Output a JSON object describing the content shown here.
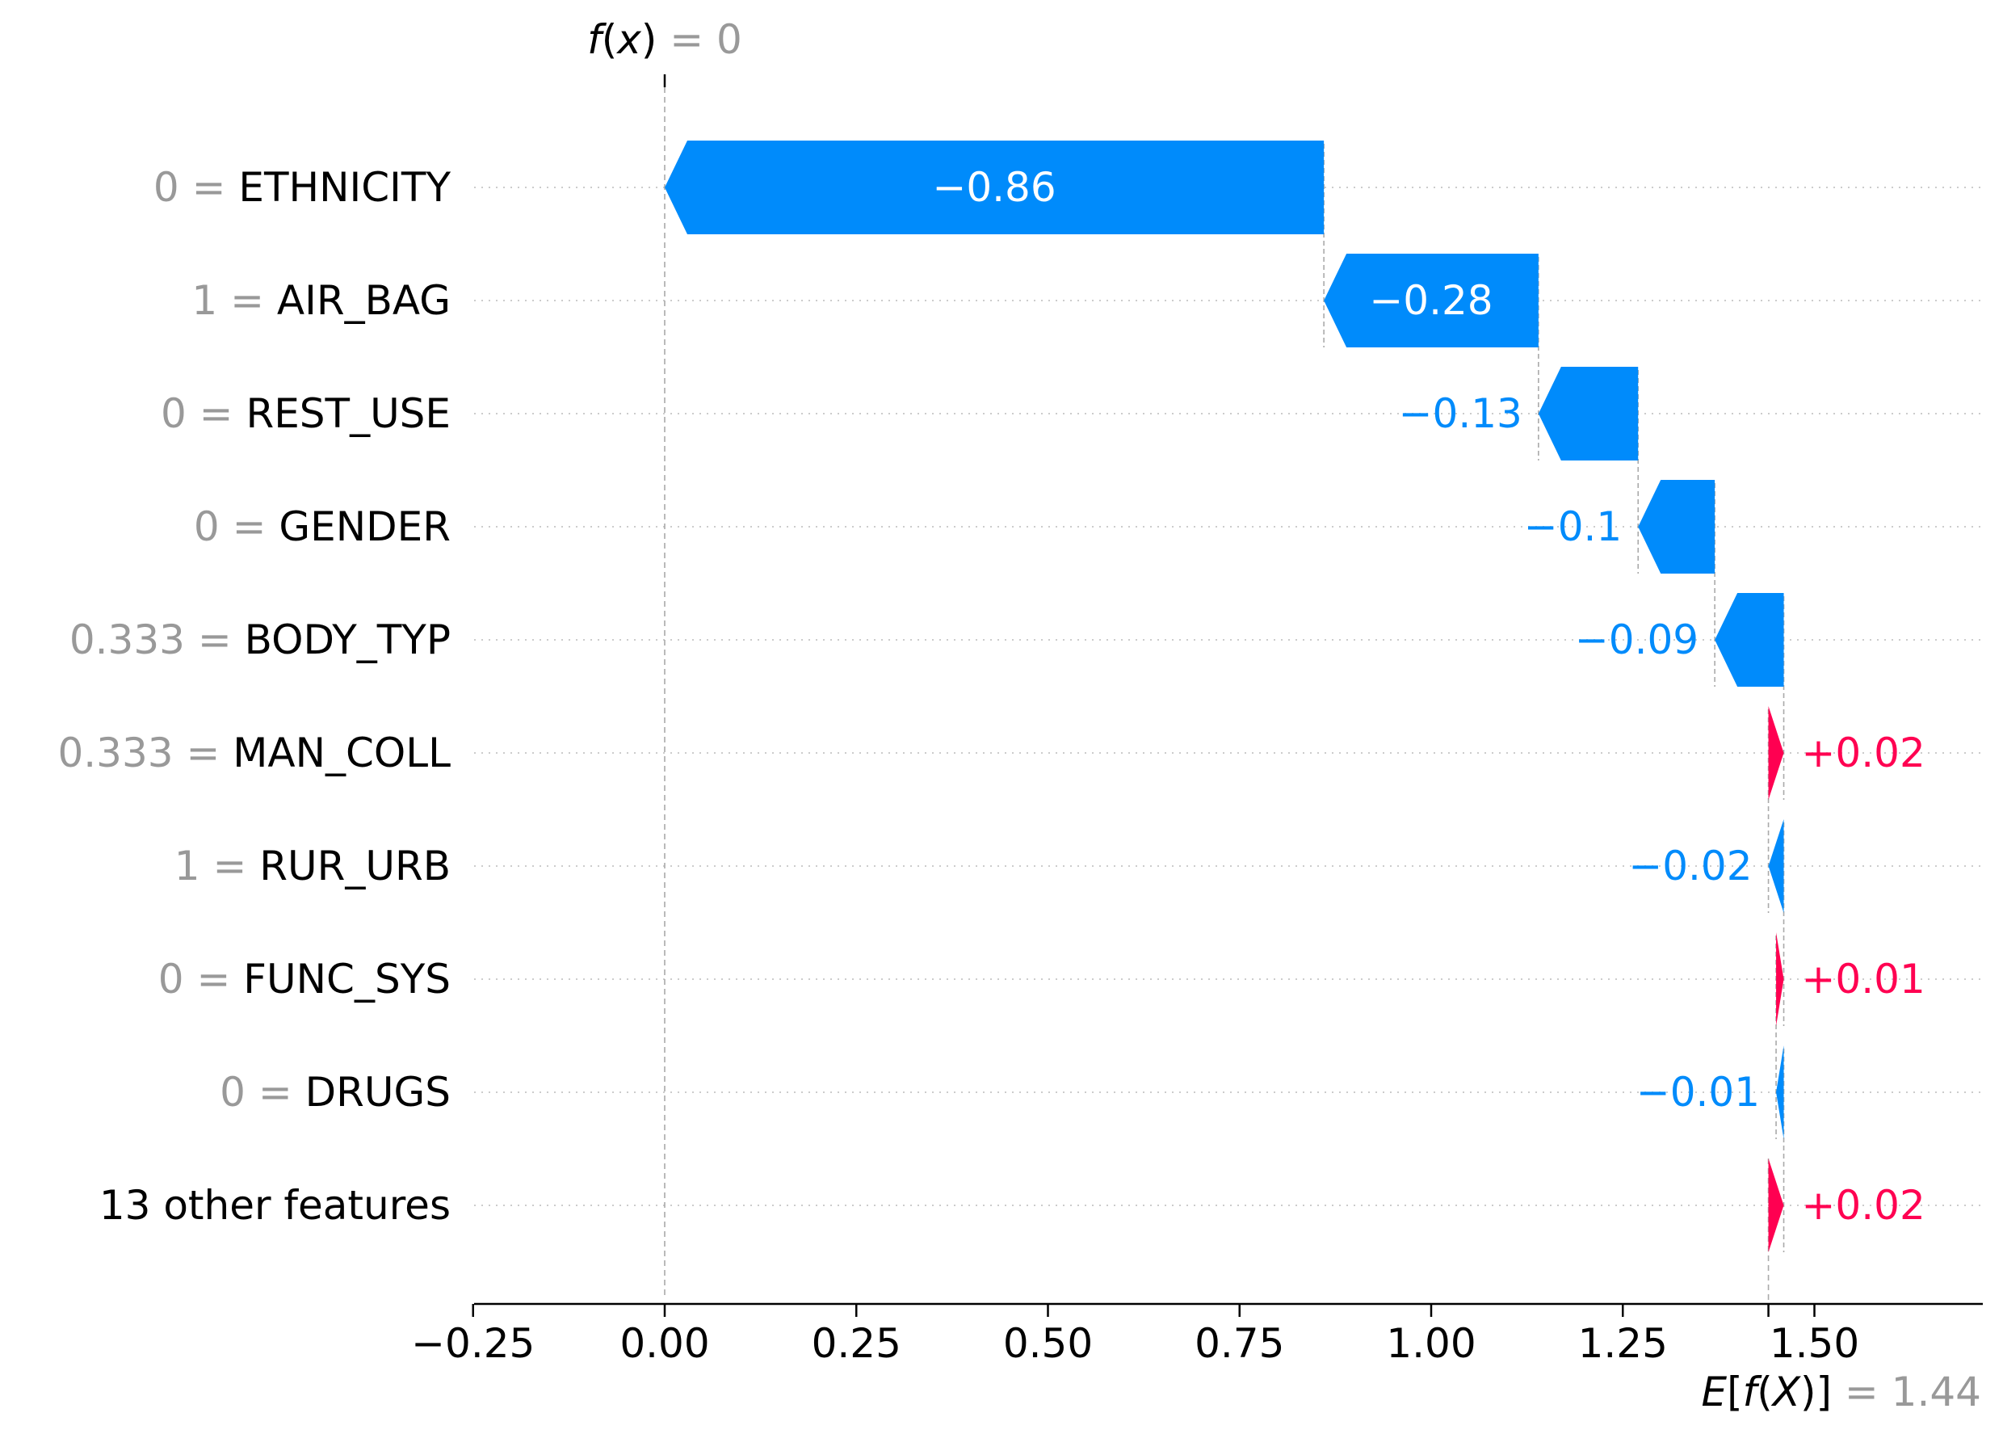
{
  "chart_data": {
    "type": "waterfall",
    "top_label": {
      "name": "f(x)",
      "value_text": "0"
    },
    "bottom_label": {
      "name": "E[f(X)]",
      "value_text": "1.44"
    },
    "base_value": 1.44,
    "output_value": 0,
    "features": [
      {
        "value": "0",
        "name": "ETHNICITY",
        "shap": -0.86,
        "label": "−0.86"
      },
      {
        "value": "1",
        "name": "AIR_BAG",
        "shap": -0.28,
        "label": "−0.28"
      },
      {
        "value": "0",
        "name": "REST_USE",
        "shap": -0.13,
        "label": "−0.13"
      },
      {
        "value": "0",
        "name": "GENDER",
        "shap": -0.1,
        "label": "−0.1"
      },
      {
        "value": "0.333",
        "name": "BODY_TYP",
        "shap": -0.09,
        "label": "−0.09"
      },
      {
        "value": "0.333",
        "name": "MAN_COLL",
        "shap": 0.02,
        "label": "+0.02"
      },
      {
        "value": "1",
        "name": "RUR_URB",
        "shap": -0.02,
        "label": "−0.02"
      },
      {
        "value": "0",
        "name": "FUNC_SYS",
        "shap": 0.01,
        "label": "+0.01"
      },
      {
        "value": "0",
        "name": "DRUGS",
        "shap": -0.01,
        "label": "−0.01"
      },
      {
        "value": "",
        "name": "13 other features",
        "shap": 0.02,
        "label": "+0.02"
      }
    ],
    "x_ticks": [
      {
        "value": -0.25,
        "label": "−0.25"
      },
      {
        "value": 0.0,
        "label": "0.00"
      },
      {
        "value": 0.25,
        "label": "0.25"
      },
      {
        "value": 0.5,
        "label": "0.50"
      },
      {
        "value": 0.75,
        "label": "0.75"
      },
      {
        "value": 1.0,
        "label": "1.00"
      },
      {
        "value": 1.25,
        "label": "1.25"
      },
      {
        "value": 1.5,
        "label": "1.50"
      }
    ],
    "xlim": [
      -0.25,
      1.71
    ],
    "colors": {
      "negative": "#008bfb",
      "positive": "#ff0051",
      "feature_value": "#999999",
      "text": "#000000"
    }
  }
}
